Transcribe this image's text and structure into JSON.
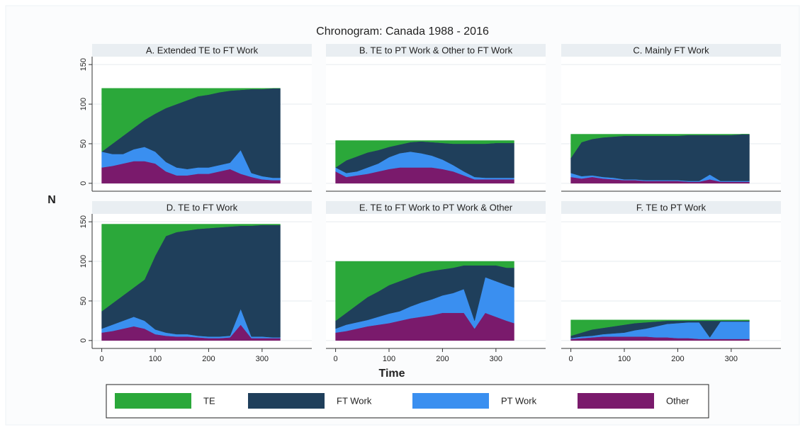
{
  "title": "Chronogram: Canada 1988 - 2016",
  "ylabel": "N",
  "xlabel": "Time",
  "chart_data": [
    {
      "type": "stacked-area",
      "title": "A. Extended TE to FT Work",
      "x": [
        0,
        20,
        40,
        60,
        80,
        100,
        120,
        140,
        160,
        180,
        200,
        220,
        240,
        260,
        280,
        300,
        320,
        334
      ],
      "xlim": [
        -18,
        393
      ],
      "ylim": [
        -10,
        160
      ],
      "xticks": [
        0,
        100,
        200,
        300
      ],
      "yticks": [
        0,
        50,
        100,
        150
      ],
      "series": [
        {
          "name": "TE",
          "color": "#2ba83a",
          "values": [
            80,
            70,
            60,
            50,
            40,
            32,
            25,
            20,
            15,
            10,
            8,
            5,
            3,
            2,
            1,
            1,
            0,
            0
          ]
        },
        {
          "name": "FT Work",
          "color": "#1f3f5b",
          "values": [
            0,
            13,
            23,
            27,
            34,
            48,
            68,
            80,
            87,
            90,
            92,
            92,
            91,
            76,
            106,
            110,
            113,
            113
          ]
        },
        {
          "name": "PT Work",
          "color": "#3a8ff0",
          "values": [
            20,
            15,
            12,
            15,
            18,
            15,
            12,
            10,
            8,
            8,
            8,
            8,
            8,
            30,
            5,
            4,
            3,
            3
          ]
        },
        {
          "name": "Other",
          "color": "#7a1a6c",
          "values": [
            20,
            22,
            25,
            28,
            28,
            25,
            15,
            10,
            10,
            12,
            12,
            15,
            18,
            12,
            8,
            5,
            4,
            4
          ]
        }
      ]
    },
    {
      "type": "stacked-area",
      "title": "B. TE to PT Work & Other to FT Work",
      "x": [
        0,
        20,
        40,
        60,
        80,
        100,
        120,
        140,
        160,
        180,
        200,
        220,
        240,
        260,
        280,
        300,
        320,
        334
      ],
      "xlim": [
        -18,
        393
      ],
      "ylim": [
        -10,
        160
      ],
      "xticks": [
        0,
        100,
        200,
        300
      ],
      "yticks": [
        0,
        50,
        100,
        150
      ],
      "series": [
        {
          "name": "TE",
          "color": "#2ba83a",
          "values": [
            34,
            25,
            20,
            15,
            12,
            8,
            5,
            2,
            1,
            2,
            3,
            4,
            4,
            4,
            4,
            3,
            3,
            3
          ]
        },
        {
          "name": "FT Work",
          "color": "#1f3f5b",
          "values": [
            0,
            16,
            19,
            19,
            17,
            13,
            11,
            12,
            15,
            17,
            21,
            27,
            35,
            42,
            43,
            44,
            44,
            44
          ]
        },
        {
          "name": "PT Work",
          "color": "#3a8ff0",
          "values": [
            5,
            5,
            5,
            8,
            10,
            15,
            18,
            20,
            18,
            15,
            12,
            8,
            5,
            3,
            2,
            2,
            2,
            2
          ]
        },
        {
          "name": "Other",
          "color": "#7a1a6c",
          "values": [
            15,
            8,
            10,
            12,
            15,
            18,
            20,
            20,
            20,
            20,
            18,
            15,
            10,
            5,
            5,
            5,
            5,
            5
          ]
        }
      ]
    },
    {
      "type": "stacked-area",
      "title": "C. Mainly FT Work",
      "x": [
        0,
        20,
        40,
        60,
        80,
        100,
        120,
        140,
        160,
        180,
        200,
        220,
        240,
        260,
        280,
        300,
        320,
        334
      ],
      "xlim": [
        -18,
        393
      ],
      "ylim": [
        -10,
        160
      ],
      "xticks": [
        0,
        100,
        200,
        300
      ],
      "yticks": [
        0,
        50,
        100,
        150
      ],
      "series": [
        {
          "name": "TE",
          "color": "#2ba83a",
          "values": [
            30,
            10,
            6,
            4,
            3,
            2,
            2,
            2,
            2,
            2,
            2,
            1,
            1,
            1,
            1,
            1,
            0,
            0
          ]
        },
        {
          "name": "FT Work",
          "color": "#1f3f5b",
          "values": [
            19,
            43,
            46,
            50,
            52,
            55,
            55,
            56,
            56,
            56,
            56,
            58,
            58,
            50,
            58,
            58,
            59,
            59
          ]
        },
        {
          "name": "PT Work",
          "color": "#3a8ff0",
          "values": [
            5,
            3,
            2,
            2,
            2,
            1,
            1,
            1,
            1,
            1,
            1,
            1,
            1,
            6,
            1,
            1,
            1,
            1
          ]
        },
        {
          "name": "Other",
          "color": "#7a1a6c",
          "values": [
            8,
            6,
            8,
            6,
            5,
            4,
            4,
            3,
            3,
            3,
            3,
            2,
            2,
            5,
            2,
            2,
            2,
            2
          ]
        }
      ]
    },
    {
      "type": "stacked-area",
      "title": "D. TE to FT Work",
      "x": [
        0,
        20,
        40,
        60,
        80,
        100,
        120,
        140,
        160,
        180,
        200,
        220,
        240,
        260,
        280,
        300,
        320,
        334
      ],
      "xlim": [
        -18,
        393
      ],
      "ylim": [
        -10,
        160
      ],
      "xticks": [
        0,
        100,
        200,
        300
      ],
      "yticks": [
        0,
        50,
        100,
        150
      ],
      "series": [
        {
          "name": "TE",
          "color": "#2ba83a",
          "values": [
            110,
            100,
            90,
            80,
            70,
            40,
            15,
            10,
            8,
            6,
            5,
            4,
            3,
            2,
            2,
            1,
            1,
            1
          ]
        },
        {
          "name": "FT Work",
          "color": "#1f3f5b",
          "values": [
            22,
            27,
            32,
            37,
            52,
            93,
            122,
            129,
            131,
            135,
            137,
            138,
            138,
            105,
            140,
            141,
            142,
            142
          ]
        },
        {
          "name": "PT Work",
          "color": "#3a8ff0",
          "values": [
            5,
            8,
            10,
            12,
            10,
            6,
            4,
            3,
            3,
            2,
            2,
            2,
            2,
            20,
            2,
            2,
            1,
            1
          ]
        },
        {
          "name": "Other",
          "color": "#7a1a6c",
          "values": [
            10,
            12,
            15,
            18,
            15,
            8,
            6,
            5,
            5,
            4,
            3,
            3,
            4,
            20,
            3,
            3,
            3,
            3
          ]
        }
      ]
    },
    {
      "type": "stacked-area",
      "title": "E. TE to FT Work to PT Work & Other",
      "x": [
        0,
        20,
        40,
        60,
        80,
        100,
        120,
        140,
        160,
        180,
        200,
        220,
        240,
        260,
        280,
        300,
        320,
        334
      ],
      "xlim": [
        -18,
        393
      ],
      "ylim": [
        -10,
        160
      ],
      "xticks": [
        0,
        100,
        200,
        300
      ],
      "yticks": [
        0,
        50,
        100,
        150
      ],
      "series": [
        {
          "name": "TE",
          "color": "#2ba83a",
          "values": [
            75,
            65,
            55,
            45,
            38,
            30,
            25,
            20,
            15,
            12,
            10,
            8,
            5,
            5,
            5,
            5,
            8,
            8
          ]
        },
        {
          "name": "FT Work",
          "color": "#1f3f5b",
          "values": [
            10,
            15,
            22,
            29,
            32,
            36,
            38,
            37,
            37,
            36,
            33,
            32,
            30,
            70,
            15,
            20,
            22,
            25
          ]
        },
        {
          "name": "PT Work",
          "color": "#3a8ff0",
          "values": [
            5,
            8,
            8,
            8,
            10,
            12,
            12,
            15,
            18,
            20,
            22,
            25,
            30,
            10,
            45,
            45,
            45,
            45
          ]
        },
        {
          "name": "Other",
          "color": "#7a1a6c",
          "values": [
            10,
            12,
            15,
            18,
            20,
            22,
            25,
            28,
            30,
            32,
            35,
            35,
            35,
            15,
            35,
            30,
            25,
            22
          ]
        }
      ]
    },
    {
      "type": "stacked-area",
      "title": "F. TE to PT Work",
      "x": [
        0,
        20,
        40,
        60,
        80,
        100,
        120,
        140,
        160,
        180,
        200,
        220,
        240,
        260,
        280,
        300,
        320,
        334
      ],
      "xlim": [
        -18,
        393
      ],
      "ylim": [
        -10,
        160
      ],
      "xticks": [
        0,
        100,
        200,
        300
      ],
      "yticks": [
        0,
        50,
        100,
        150
      ],
      "series": [
        {
          "name": "TE",
          "color": "#2ba83a",
          "values": [
            20,
            16,
            12,
            10,
            8,
            6,
            4,
            3,
            2,
            1,
            1,
            1,
            1,
            1,
            1,
            1,
            1,
            1
          ]
        },
        {
          "name": "FT Work",
          "color": "#1f3f5b",
          "values": [
            3,
            5,
            8,
            8,
            9,
            10,
            9,
            8,
            6,
            4,
            3,
            2,
            2,
            21,
            1,
            1,
            1,
            1
          ]
        },
        {
          "name": "PT Work",
          "color": "#3a8ff0",
          "values": [
            1,
            2,
            2,
            3,
            4,
            5,
            8,
            10,
            14,
            17,
            19,
            20,
            21,
            2,
            22,
            22,
            22,
            22
          ]
        },
        {
          "name": "Other",
          "color": "#7a1a6c",
          "values": [
            2,
            3,
            4,
            5,
            5,
            5,
            5,
            5,
            4,
            4,
            3,
            3,
            2,
            2,
            2,
            2,
            2,
            2
          ]
        }
      ]
    }
  ]
}
